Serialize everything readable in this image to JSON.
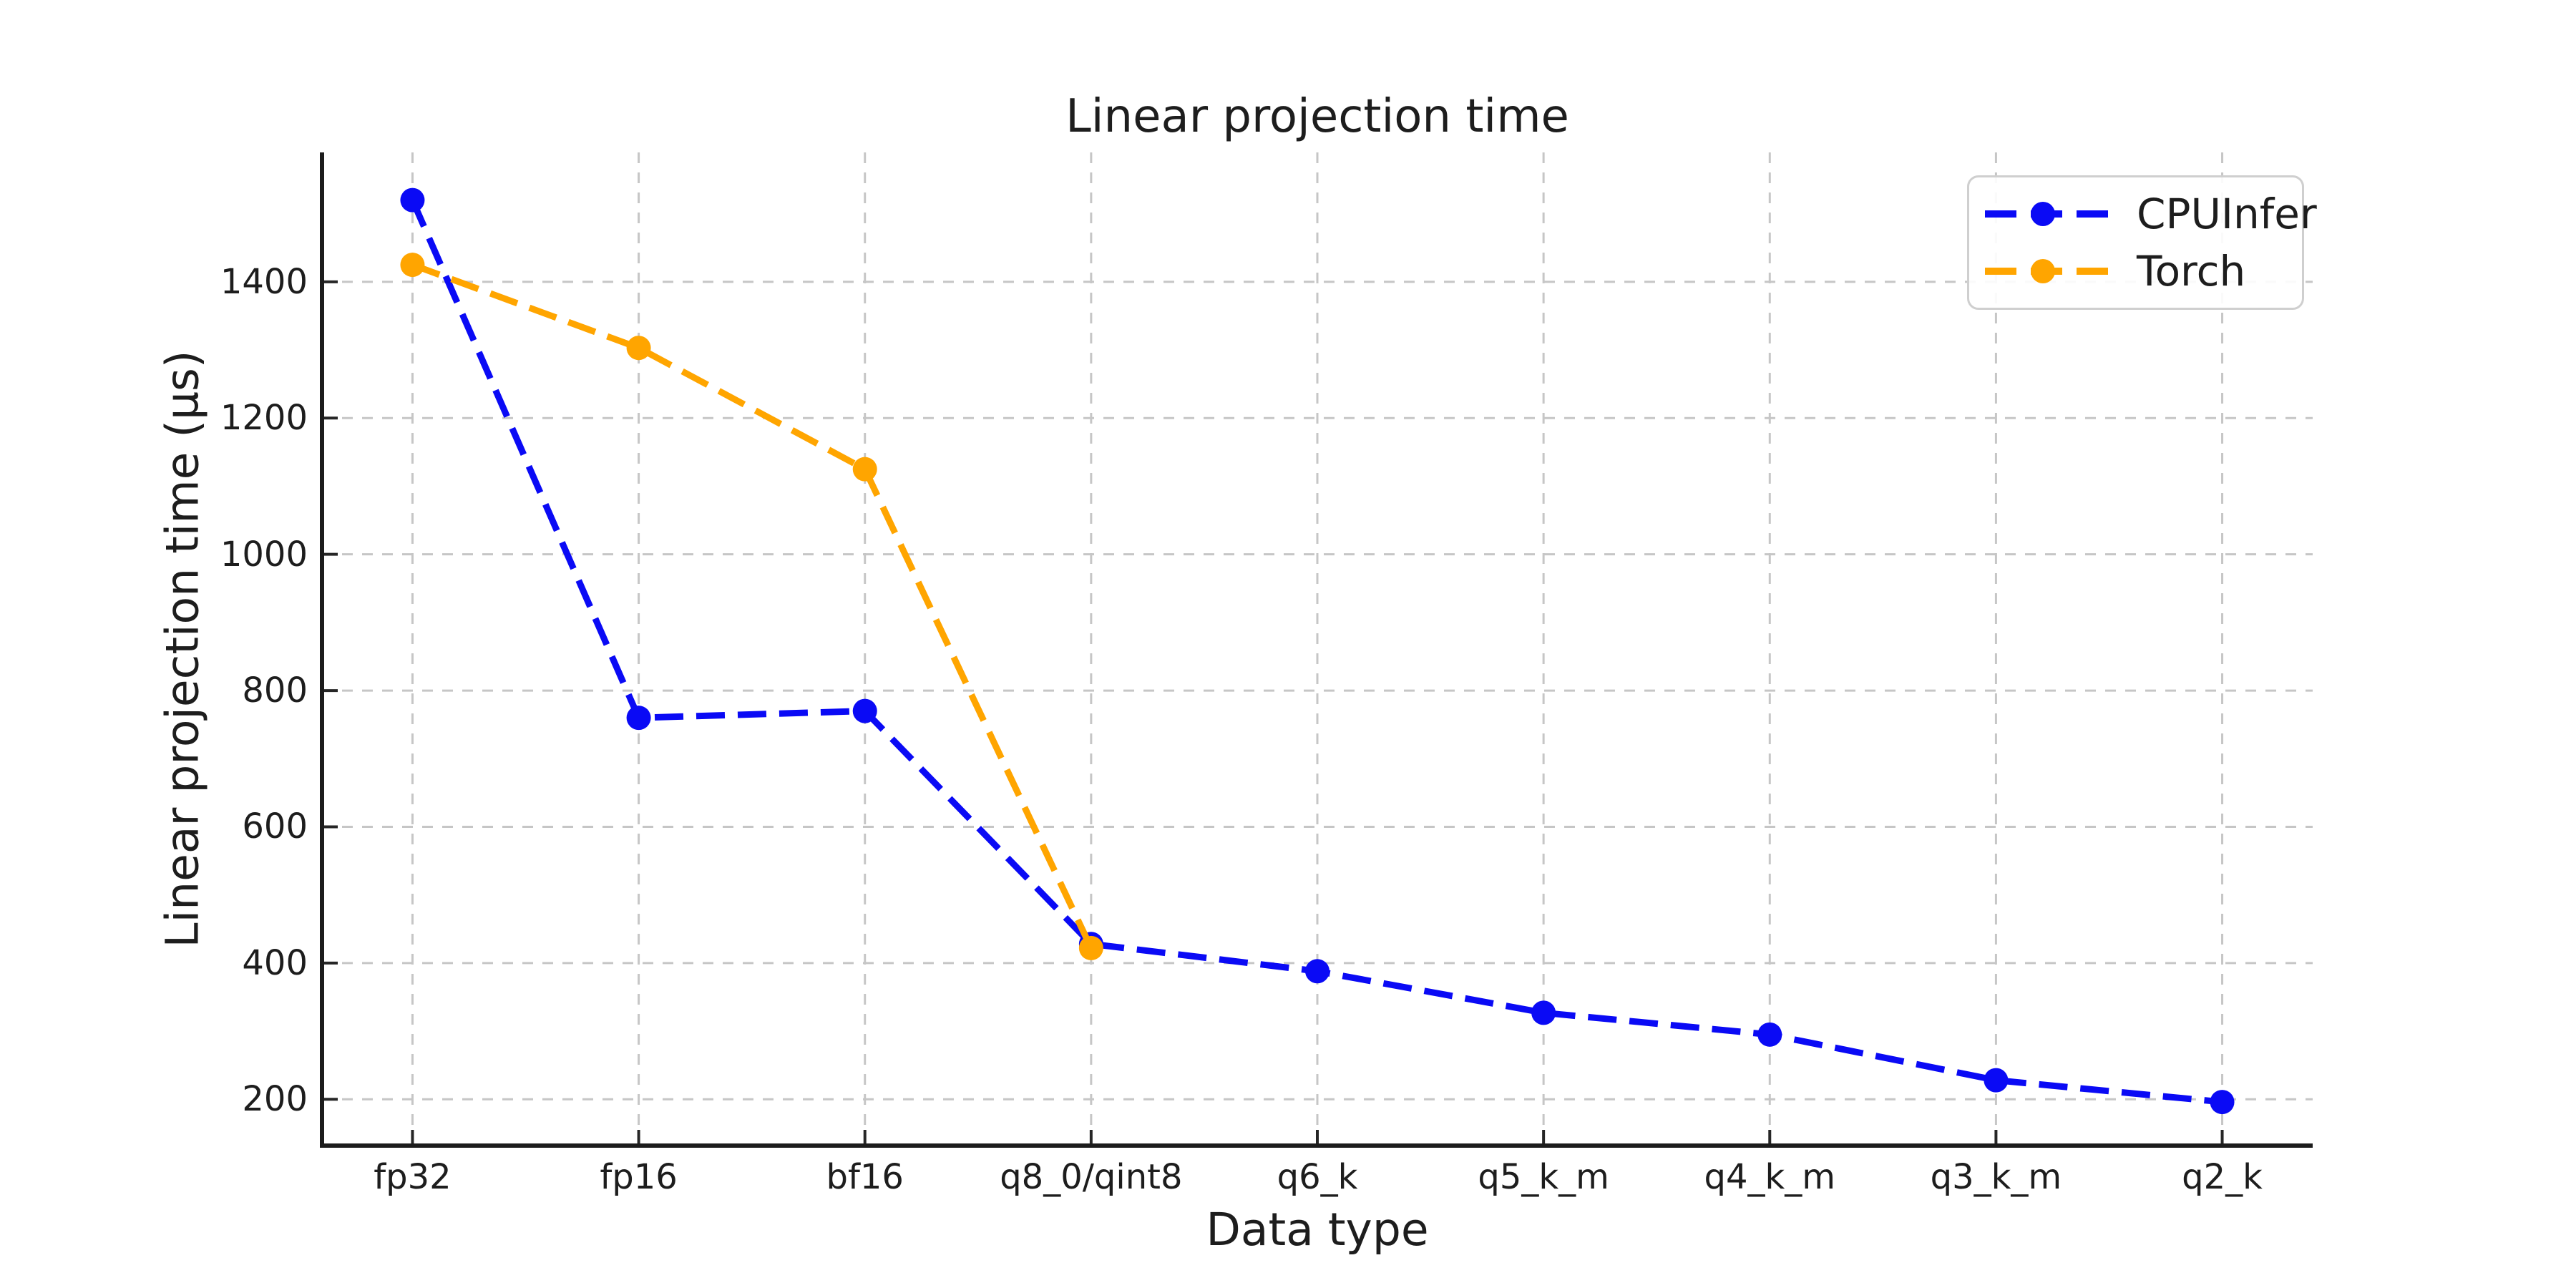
{
  "title": "Linear projection time",
  "xlabel": "Data type",
  "ylabel": "Linear projection time (µs)",
  "legend": {
    "position": "upper right",
    "items": [
      {
        "label": "CPUInfer",
        "color": "#0a0af5"
      },
      {
        "label": "Torch",
        "color": "#ffa500"
      }
    ]
  },
  "chart_data": {
    "type": "line",
    "title": "Linear projection time",
    "xlabel": "Data type",
    "ylabel": "Linear projection time (µs)",
    "categories": [
      "fp32",
      "fp16",
      "bf16",
      "q8_0/qint8",
      "q6_k",
      "q5_k_m",
      "q4_k_m",
      "q3_k_m",
      "q2_k"
    ],
    "series": [
      {
        "name": "CPUInfer",
        "color": "#0a0af5",
        "line_style": "dashed",
        "marker": "circle",
        "values": [
          1520,
          760,
          770,
          428,
          388,
          327,
          295,
          228,
          196
        ]
      },
      {
        "name": "Torch",
        "color": "#ffa500",
        "line_style": "dashed",
        "marker": "circle",
        "values": [
          1425,
          1303,
          1125,
          422,
          null,
          null,
          null,
          null,
          null
        ]
      }
    ],
    "y_ticks": [
      200,
      400,
      600,
      800,
      1000,
      1200,
      1400
    ],
    "ylim": [
      132,
      1590
    ],
    "xlim": [
      -0.4,
      8.4
    ],
    "grid": true,
    "grid_style": "dashed",
    "legend_position": "upper right"
  },
  "colors": {
    "background": "#ffffff",
    "text": "#1d1d1d",
    "spine": "#1c1c1c",
    "tick": "#262626",
    "grid": "#c6c6c6",
    "cpuinfer_blue": "#0a0af5",
    "torch_orange": "#ffa500",
    "legend_border": "#cfcfcf"
  }
}
